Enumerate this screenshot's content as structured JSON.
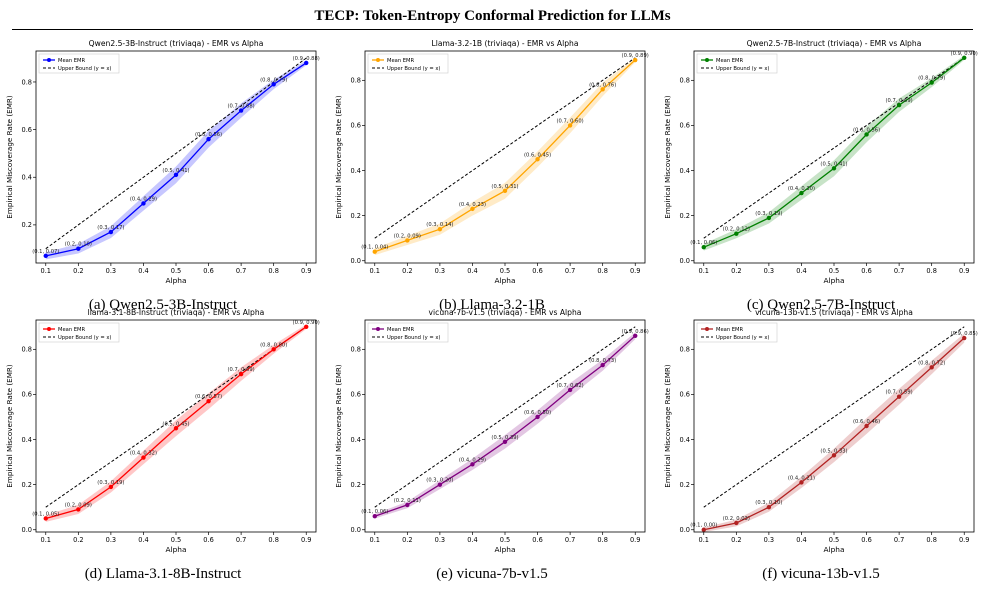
{
  "page": {
    "title": "TECP: Token-Entropy Conformal Prediction for LLMs"
  },
  "chart_data": [
    {
      "type": "line",
      "title": "Qwen2.5-3B-Instruct (triviaqa) - EMR vs Alpha",
      "caption": "(a) Qwen2.5-3B-Instruct",
      "xlabel": "Alpha",
      "ylabel": "Empirical Miscoverage Rate (EMR)",
      "xlim": [
        0.07,
        0.93
      ],
      "ylim": [
        0.04,
        0.93
      ],
      "xticks": [
        0.1,
        0.2,
        0.3,
        0.4,
        0.5,
        0.6,
        0.7,
        0.8,
        0.9
      ],
      "yticks": [
        0.2,
        0.4,
        0.6,
        0.8
      ],
      "grid": false,
      "legend": "top-left",
      "color": "#0000ff",
      "series": [
        {
          "name": "Mean EMR",
          "x": [
            0.1,
            0.2,
            0.3,
            0.4,
            0.5,
            0.6,
            0.7,
            0.8,
            0.9
          ],
          "y": [
            0.07,
            0.1,
            0.17,
            0.29,
            0.41,
            0.56,
            0.68,
            0.79,
            0.88
          ],
          "labels": [
            "(0.1, 0.07)",
            "(0.2, 0.10)",
            "(0.3, 0.17)",
            "(0.4, 0.29)",
            "(0.5, 0.41)",
            "(0.6, 0.56)",
            "(0.7, 0.68)",
            "(0.8, 0.79)",
            "(0.9, 0.88)"
          ],
          "band": [
            0.015,
            0.02,
            0.025,
            0.03,
            0.035,
            0.035,
            0.03,
            0.02,
            0.01
          ]
        },
        {
          "name": "Upper Bound (y = x)",
          "x": [
            0.1,
            0.9
          ],
          "y": [
            0.1,
            0.9
          ]
        }
      ]
    },
    {
      "type": "line",
      "title": "Llama-3.2-1B (triviaqa) - EMR vs Alpha",
      "caption": "(b) Llama-3.2-1B",
      "xlabel": "Alpha",
      "ylabel": "Empirical Miscoverage Rate (EMR)",
      "xlim": [
        0.07,
        0.93
      ],
      "ylim": [
        -0.01,
        0.93
      ],
      "xticks": [
        0.1,
        0.2,
        0.3,
        0.4,
        0.5,
        0.6,
        0.7,
        0.8,
        0.9
      ],
      "yticks": [
        0.0,
        0.2,
        0.4,
        0.6,
        0.8
      ],
      "grid": false,
      "legend": "top-left",
      "color": "#ffa500",
      "series": [
        {
          "name": "Mean EMR",
          "x": [
            0.1,
            0.2,
            0.3,
            0.4,
            0.5,
            0.6,
            0.7,
            0.8,
            0.9
          ],
          "y": [
            0.04,
            0.09,
            0.14,
            0.23,
            0.31,
            0.45,
            0.6,
            0.76,
            0.89
          ],
          "labels": [
            "(0.1, 0.04)",
            "(0.2, 0.09)",
            "(0.3, 0.14)",
            "(0.4, 0.23)",
            "(0.5, 0.31)",
            "(0.6, 0.45)",
            "(0.7, 0.60)",
            "(0.8, 0.76)",
            "(0.9, 0.89)"
          ],
          "band": [
            0.015,
            0.02,
            0.025,
            0.03,
            0.035,
            0.035,
            0.035,
            0.03,
            0.01
          ]
        },
        {
          "name": "Upper Bound (y = x)",
          "x": [
            0.1,
            0.9
          ],
          "y": [
            0.1,
            0.9
          ]
        }
      ]
    },
    {
      "type": "line",
      "title": "Qwen2.5-7B-Instruct (triviaqa) - EMR vs Alpha",
      "caption": "(c) Qwen2.5-7B-Instruct",
      "xlabel": "Alpha",
      "ylabel": "Empirical Miscoverage Rate (EMR)",
      "xlim": [
        0.07,
        0.93
      ],
      "ylim": [
        -0.01,
        0.93
      ],
      "xticks": [
        0.1,
        0.2,
        0.3,
        0.4,
        0.5,
        0.6,
        0.7,
        0.8,
        0.9
      ],
      "yticks": [
        0.0,
        0.2,
        0.4,
        0.6,
        0.8
      ],
      "grid": false,
      "legend": "top-left",
      "color": "#008000",
      "series": [
        {
          "name": "Mean EMR",
          "x": [
            0.1,
            0.2,
            0.3,
            0.4,
            0.5,
            0.6,
            0.7,
            0.8,
            0.9
          ],
          "y": [
            0.06,
            0.12,
            0.19,
            0.3,
            0.41,
            0.56,
            0.69,
            0.79,
            0.9
          ],
          "labels": [
            "(0.1, 0.06)",
            "(0.2, 0.12)",
            "(0.3, 0.19)",
            "(0.4, 0.30)",
            "(0.5, 0.41)",
            "(0.6, 0.56)",
            "(0.7, 0.69)",
            "(0.8, 0.79)",
            "(0.9, 0.90)"
          ],
          "band": [
            0.015,
            0.02,
            0.025,
            0.03,
            0.035,
            0.035,
            0.03,
            0.02,
            0.01
          ]
        },
        {
          "name": "Upper Bound (y = x)",
          "x": [
            0.1,
            0.9
          ],
          "y": [
            0.1,
            0.9
          ]
        }
      ]
    },
    {
      "type": "line",
      "title": "llama-3.1-8B-Instruct (triviaqa) - EMR vs Alpha",
      "caption": "(d) Llama-3.1-8B-Instruct",
      "xlabel": "Alpha",
      "ylabel": "Empirical Miscoverage Rate (EMR)",
      "xlim": [
        0.07,
        0.93
      ],
      "ylim": [
        -0.01,
        0.93
      ],
      "xticks": [
        0.1,
        0.2,
        0.3,
        0.4,
        0.5,
        0.6,
        0.7,
        0.8,
        0.9
      ],
      "yticks": [
        0.0,
        0.2,
        0.4,
        0.6,
        0.8
      ],
      "grid": false,
      "legend": "top-left",
      "color": "#ff0000",
      "series": [
        {
          "name": "Mean EMR",
          "x": [
            0.1,
            0.2,
            0.3,
            0.4,
            0.5,
            0.6,
            0.7,
            0.8,
            0.9
          ],
          "y": [
            0.05,
            0.09,
            0.19,
            0.32,
            0.45,
            0.57,
            0.69,
            0.8,
            0.9
          ],
          "labels": [
            "(0.1, 0.05)",
            "(0.2, 0.09)",
            "(0.3, 0.19)",
            "(0.4, 0.32)",
            "(0.5, 0.45)",
            "(0.6, 0.57)",
            "(0.7, 0.69)",
            "(0.8, 0.80)",
            "(0.9, 0.90)"
          ],
          "band": [
            0.015,
            0.02,
            0.025,
            0.03,
            0.035,
            0.035,
            0.03,
            0.02,
            0.01
          ]
        },
        {
          "name": "Upper Bound (y = x)",
          "x": [
            0.1,
            0.9
          ],
          "y": [
            0.1,
            0.9
          ]
        }
      ]
    },
    {
      "type": "line",
      "title": "vicuna-7b-v1.5 (triviaqa) - EMR vs Alpha",
      "caption": "(e) vicuna-7b-v1.5",
      "xlabel": "Alpha",
      "ylabel": "Empirical Miscoverage Rate (EMR)",
      "xlim": [
        0.07,
        0.93
      ],
      "ylim": [
        -0.01,
        0.93
      ],
      "xticks": [
        0.1,
        0.2,
        0.3,
        0.4,
        0.5,
        0.6,
        0.7,
        0.8,
        0.9
      ],
      "yticks": [
        0.0,
        0.2,
        0.4,
        0.6,
        0.8
      ],
      "grid": false,
      "legend": "top-left",
      "color": "#800080",
      "series": [
        {
          "name": "Mean EMR",
          "x": [
            0.1,
            0.2,
            0.3,
            0.4,
            0.5,
            0.6,
            0.7,
            0.8,
            0.9
          ],
          "y": [
            0.06,
            0.11,
            0.2,
            0.29,
            0.39,
            0.5,
            0.62,
            0.73,
            0.86
          ],
          "labels": [
            "(0.1, 0.06)",
            "(0.2, 0.11)",
            "(0.3, 0.20)",
            "(0.4, 0.29)",
            "(0.5, 0.39)",
            "(0.6, 0.50)",
            "(0.7, 0.62)",
            "(0.8, 0.73)",
            "(0.9, 0.86)"
          ],
          "band": [
            0.01,
            0.015,
            0.02,
            0.025,
            0.03,
            0.03,
            0.03,
            0.025,
            0.015
          ]
        },
        {
          "name": "Upper Bound (y = x)",
          "x": [
            0.1,
            0.9
          ],
          "y": [
            0.1,
            0.9
          ]
        }
      ]
    },
    {
      "type": "line",
      "title": "vicuna-13b-v1.5 (triviaqa) - EMR vs Alpha",
      "caption": "(f) vicuna-13b-v1.5",
      "xlabel": "Alpha",
      "ylabel": "Empirical Miscoverage Rate (EMR)",
      "xlim": [
        0.07,
        0.93
      ],
      "ylim": [
        -0.01,
        0.93
      ],
      "xticks": [
        0.1,
        0.2,
        0.3,
        0.4,
        0.5,
        0.6,
        0.7,
        0.8,
        0.9
      ],
      "yticks": [
        0.0,
        0.2,
        0.4,
        0.6,
        0.8
      ],
      "grid": false,
      "legend": "top-left",
      "color": "#b22222",
      "series": [
        {
          "name": "Mean EMR",
          "x": [
            0.1,
            0.2,
            0.3,
            0.4,
            0.5,
            0.6,
            0.7,
            0.8,
            0.9
          ],
          "y": [
            0.0,
            0.03,
            0.1,
            0.21,
            0.33,
            0.46,
            0.59,
            0.72,
            0.85
          ],
          "labels": [
            "(0.1, 0.00)",
            "(0.2, 0.03)",
            "(0.3, 0.10)",
            "(0.4, 0.21)",
            "(0.5, 0.33)",
            "(0.6, 0.46)",
            "(0.7, 0.59)",
            "(0.8, 0.72)",
            "(0.9, 0.85)"
          ],
          "band": [
            0.01,
            0.015,
            0.02,
            0.025,
            0.03,
            0.035,
            0.035,
            0.03,
            0.02
          ]
        },
        {
          "name": "Upper Bound (y = x)",
          "x": [
            0.1,
            0.9
          ],
          "y": [
            0.1,
            0.9
          ]
        }
      ]
    }
  ]
}
